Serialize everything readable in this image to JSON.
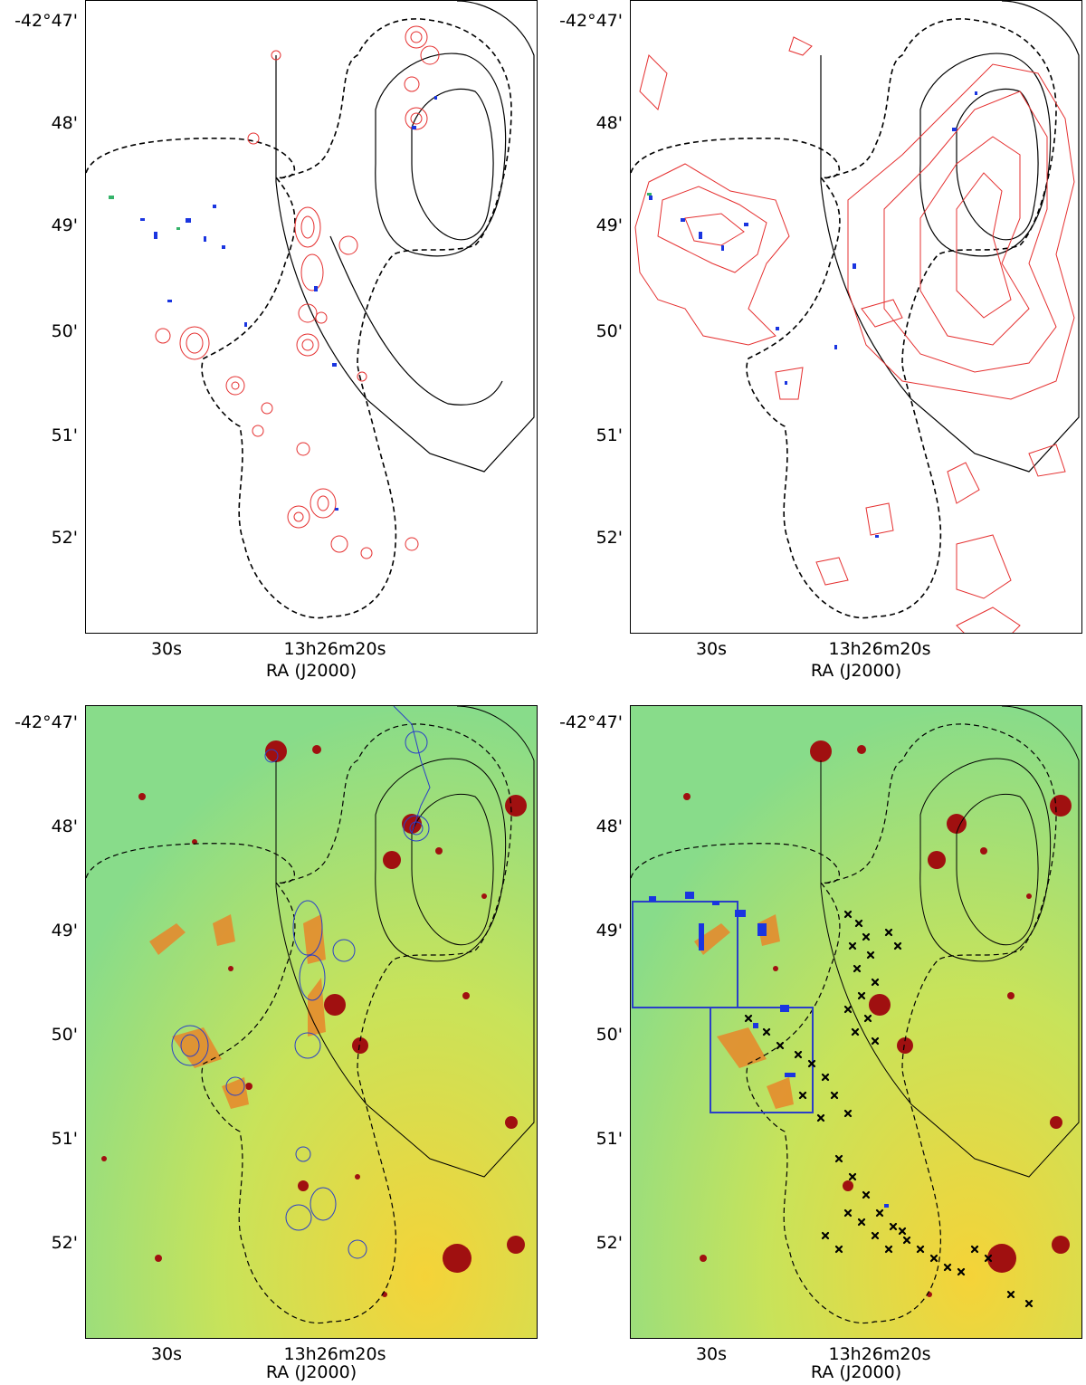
{
  "axes": {
    "x_tick_labels": [
      "30s",
      "13h26m20s"
    ],
    "x_label": "RA (J2000)",
    "y_tick_labels": [
      "-42°47'",
      "48'",
      "49'",
      "50'",
      "51'",
      "52'"
    ]
  },
  "panels": [
    {
      "id": "top-left",
      "background": "white",
      "overlay_color": "#e53030"
    },
    {
      "id": "top-right",
      "background": "white",
      "overlay_color": "#e53030"
    },
    {
      "id": "bottom-left",
      "background": "optical-image",
      "overlay_color": "#2a3fc8"
    },
    {
      "id": "bottom-right",
      "background": "optical-image",
      "overlay_color": "#000000",
      "marker": "x-cross",
      "boxes": 2
    }
  ],
  "colors": {
    "contour_red": "#e53030",
    "contour_blue": "#2a3fc8",
    "emission_blue": "#1a35e0",
    "image_base": "#9fe07a",
    "image_star": "#a01010",
    "box_blue": "#2a3fc8"
  }
}
